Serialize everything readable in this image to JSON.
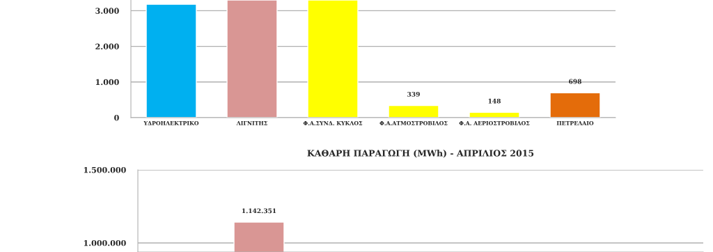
{
  "chart_data": [
    {
      "type": "bar",
      "categories": [
        "ΥΔΡΟΗΛΕΚΤΡΙΚΟ",
        "ΛΙΓΝΙΤΗΣ",
        "Φ.Α.ΣΥΝΔ. ΚΥΚΛΟΣ",
        "Φ.Α.ΑΤΜΟΣΤΡΟΒΙΛΟΣ",
        "Φ.Α. ΑΕΡΙΟΣΤΡΟΒΙΛΟΣ",
        "ΠΕΤΡΕΛΑΙΟ"
      ],
      "values": [
        3180,
        3300,
        3300,
        339,
        148,
        698
      ],
      "value_labels": [
        null,
        null,
        null,
        "339",
        "148",
        "698"
      ],
      "colors": [
        "#00b0f0",
        "#d99694",
        "#ffff00",
        "#ffff00",
        "#ffff00",
        "#e46c0a"
      ],
      "ylim": [
        0,
        3300
      ],
      "yticks": [
        0,
        {
          "value": 1000,
          "label": "1.000"
        },
        {
          "value": 2000,
          "label": "2.000"
        },
        {
          "value": 3000,
          "label": "3.000"
        }
      ],
      "grid": "y"
    },
    {
      "type": "bar",
      "title": "ΚΑΘΑΡΗ ΠΑΡΑΓΩΓΗ (MWh) - ΑΠΡΙΛΙΟΣ 2015",
      "categories": [
        null,
        null,
        null,
        null,
        null,
        null,
        null
      ],
      "values": [
        null,
        1142351,
        null,
        null,
        null,
        null,
        null
      ],
      "value_labels": [
        null,
        "1.142.351",
        null,
        null,
        null,
        null,
        null
      ],
      "color": "#d99694",
      "ylim": [
        938000,
        1500000
      ],
      "yticks": [
        {
          "value": 1000000,
          "label": "1.000.000"
        },
        {
          "value": 1500000,
          "label": "1.500.000"
        }
      ],
      "grid": "y"
    }
  ]
}
